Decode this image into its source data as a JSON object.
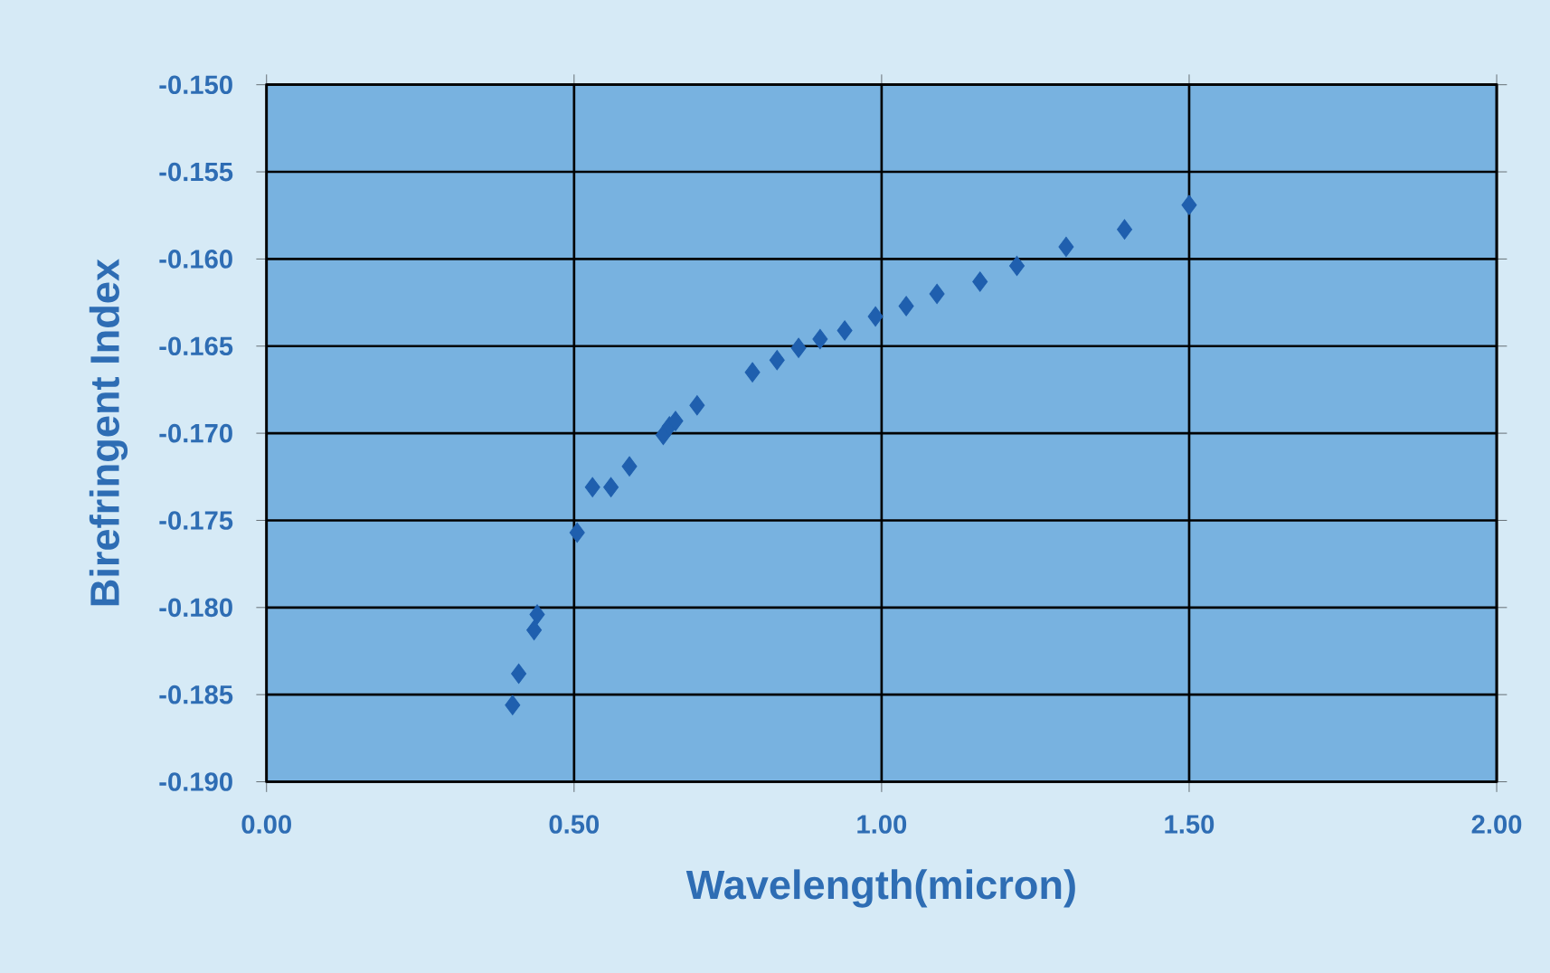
{
  "chart_data": {
    "type": "scatter",
    "xlabel": "Wavelength(micron)",
    "ylabel": "Birefringent Index",
    "x": [
      0.4,
      0.41,
      0.435,
      0.44,
      0.505,
      0.53,
      0.56,
      0.59,
      0.645,
      0.655,
      0.665,
      0.7,
      0.79,
      0.83,
      0.865,
      0.9,
      0.94,
      0.99,
      1.04,
      1.09,
      1.16,
      1.22,
      1.3,
      1.395,
      1.5
    ],
    "series": [
      {
        "color": "#1f5fae",
        "values": [
          -0.1856,
          -0.1838,
          -0.1813,
          -0.1804,
          -0.1757,
          -0.1731,
          -0.1731,
          -0.1719,
          -0.1701,
          -0.1696,
          -0.1693,
          -0.1684,
          -0.1665,
          -0.1658,
          -0.1651,
          -0.1646,
          -0.1641,
          -0.1633,
          -0.1627,
          -0.162,
          -0.1613,
          -0.1604,
          -0.1593,
          -0.1583,
          -0.1569
        ]
      }
    ],
    "xlim": [
      0,
      2
    ],
    "xticks": [
      {
        "value": 0,
        "label": "0.00"
      },
      {
        "value": 0.5,
        "label": "0.50"
      },
      {
        "value": 1,
        "label": "1.00"
      },
      {
        "value": 1.5,
        "label": "1.50"
      },
      {
        "value": 2,
        "label": "2.00"
      }
    ],
    "ylim": [
      -0.19,
      -0.15
    ],
    "yticks": [
      {
        "value": -0.19,
        "label": "-0.190"
      },
      {
        "value": -0.185,
        "label": "-0.185"
      },
      {
        "value": -0.18,
        "label": "-0.180"
      },
      {
        "value": -0.175,
        "label": "-0.175"
      },
      {
        "value": -0.17,
        "label": "-0.170"
      },
      {
        "value": -0.165,
        "label": "-0.165"
      },
      {
        "value": -0.16,
        "label": "-0.160"
      },
      {
        "value": -0.155,
        "label": "-0.155"
      },
      {
        "value": -0.15,
        "label": "-0.150"
      }
    ],
    "grid": true,
    "marker": "diamond"
  }
}
